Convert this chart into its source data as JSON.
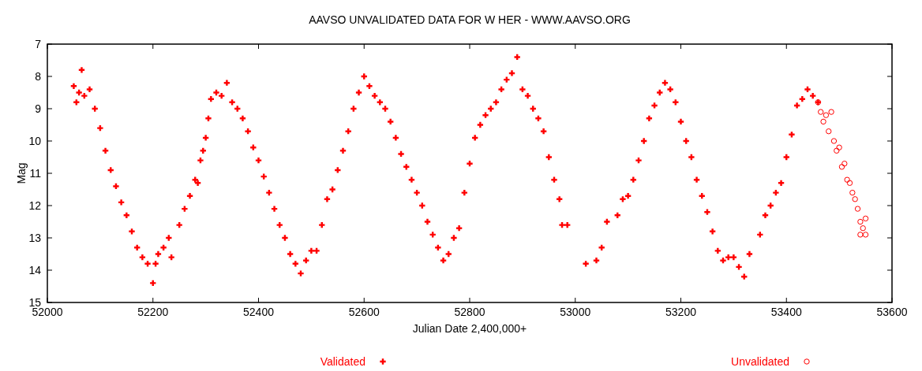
{
  "chart_data": {
    "type": "scatter",
    "title": "AAVSO UNVALIDATED DATA FOR W HER - WWW.AAVSO.ORG",
    "xlabel": "Julian Date 2,400,000+",
    "ylabel": "Mag",
    "xlim": [
      52000,
      53600
    ],
    "xticks": [
      52000,
      52200,
      52400,
      52600,
      52800,
      53000,
      53200,
      53400,
      53600
    ],
    "ylim": [
      15,
      7
    ],
    "yticks": [
      7,
      8,
      9,
      10,
      11,
      12,
      13,
      14,
      15
    ],
    "legend": "bottom",
    "series": [
      {
        "name": "Validated",
        "color": "#ff0000",
        "marker": "cross",
        "x": [
          52050,
          52055,
          52060,
          52065,
          52070,
          52080,
          52090,
          52100,
          52110,
          52120,
          52130,
          52140,
          52150,
          52160,
          52170,
          52180,
          52190,
          52200,
          52205,
          52210,
          52220,
          52230,
          52235,
          52250,
          52260,
          52270,
          52280,
          52285,
          52290,
          52295,
          52300,
          52305,
          52310,
          52320,
          52330,
          52340,
          52350,
          52360,
          52370,
          52380,
          52390,
          52400,
          52410,
          52420,
          52430,
          52440,
          52450,
          52460,
          52470,
          52480,
          52490,
          52500,
          52510,
          52520,
          52530,
          52540,
          52550,
          52560,
          52570,
          52580,
          52590,
          52600,
          52610,
          52620,
          52630,
          52640,
          52650,
          52660,
          52670,
          52680,
          52690,
          52700,
          52710,
          52720,
          52730,
          52740,
          52750,
          52760,
          52770,
          52780,
          52790,
          52800,
          52810,
          52820,
          52830,
          52840,
          52850,
          52860,
          52870,
          52880,
          52890,
          52900,
          52910,
          52920,
          52930,
          52940,
          52950,
          52960,
          52970,
          52975,
          52985,
          53020,
          53040,
          53050,
          53060,
          53080,
          53090,
          53100,
          53110,
          53120,
          53130,
          53140,
          53150,
          53160,
          53170,
          53180,
          53190,
          53200,
          53210,
          53220,
          53230,
          53240,
          53250,
          53260,
          53270,
          53280,
          53290,
          53300,
          53310,
          53320,
          53330,
          53350,
          53360,
          53370,
          53380,
          53390,
          53400,
          53410,
          53420,
          53430,
          53440,
          53450,
          53460
        ],
        "values": [
          8.3,
          8.8,
          8.5,
          7.8,
          8.6,
          8.4,
          9.0,
          9.6,
          10.3,
          10.9,
          11.4,
          11.9,
          12.3,
          12.8,
          13.3,
          13.6,
          13.8,
          14.4,
          13.8,
          13.5,
          13.3,
          13.0,
          13.6,
          12.6,
          12.1,
          11.7,
          11.2,
          11.3,
          10.6,
          10.3,
          9.9,
          9.3,
          8.7,
          8.5,
          8.6,
          8.2,
          8.8,
          9.0,
          9.3,
          9.7,
          10.2,
          10.6,
          11.1,
          11.6,
          12.1,
          12.6,
          13.0,
          13.5,
          13.8,
          14.1,
          13.7,
          13.4,
          13.4,
          12.6,
          11.8,
          11.5,
          10.9,
          10.3,
          9.7,
          9.0,
          8.5,
          8.0,
          8.3,
          8.6,
          8.8,
          9.0,
          9.4,
          9.9,
          10.4,
          10.8,
          11.2,
          11.6,
          12.0,
          12.5,
          12.9,
          13.3,
          13.7,
          13.5,
          13.0,
          12.7,
          11.6,
          10.7,
          9.9,
          9.5,
          9.2,
          9.0,
          8.8,
          8.4,
          8.1,
          7.9,
          7.4,
          8.4,
          8.6,
          9.0,
          9.3,
          9.7,
          10.5,
          11.2,
          11.8,
          12.6,
          12.6,
          13.8,
          13.7,
          13.3,
          12.5,
          12.3,
          11.8,
          11.7,
          11.2,
          10.6,
          10.0,
          9.3,
          8.9,
          8.5,
          8.2,
          8.4,
          8.8,
          9.4,
          10.0,
          10.5,
          11.2,
          11.7,
          12.2,
          12.8,
          13.4,
          13.7,
          13.6,
          13.6,
          13.9,
          14.2,
          13.5,
          12.9,
          12.3,
          12.0,
          11.6,
          11.3,
          10.5,
          9.8,
          8.9,
          8.7,
          8.4,
          8.6,
          8.8
        ]
      },
      {
        "name": "Unvalidated",
        "color": "#ff0000",
        "marker": "circle",
        "x": [
          53460,
          53465,
          53470,
          53475,
          53480,
          53485,
          53490,
          53495,
          53500,
          53505,
          53510,
          53515,
          53520,
          53525,
          53530,
          53535,
          53540,
          53545,
          53550,
          53540,
          53550
        ],
        "values": [
          8.8,
          9.1,
          9.4,
          9.2,
          9.7,
          9.1,
          10.0,
          10.3,
          10.2,
          10.8,
          10.7,
          11.2,
          11.3,
          11.6,
          11.8,
          12.1,
          12.5,
          12.7,
          12.4,
          12.9,
          12.9
        ]
      }
    ]
  }
}
